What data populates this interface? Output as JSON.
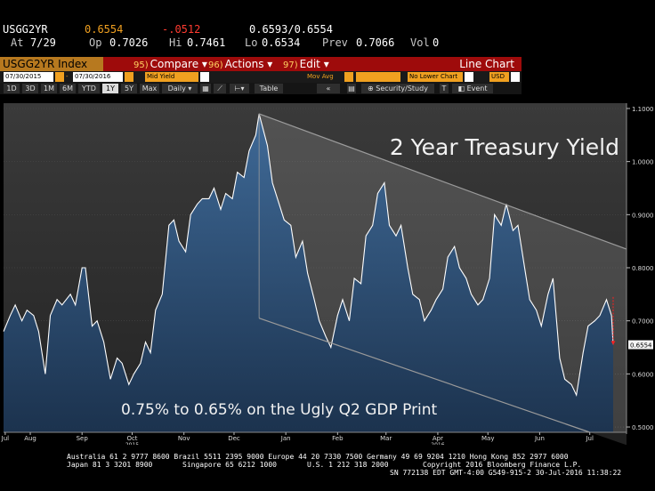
{
  "quote": {
    "ticker": "USGG2YR",
    "last": "0.6554",
    "change": "-.0512",
    "bid_ask": "0.6593/0.6554",
    "at_label": "At",
    "at": "7/29",
    "op_label": "Op",
    "open": "0.7026",
    "hi_label": "Hi",
    "high": "0.7461",
    "lo_label": "Lo",
    "low": "0.6534",
    "prev_label": "Prev",
    "prev": "0.7066",
    "vol_label": "Vol",
    "vol": "0"
  },
  "toolbar": {
    "ticker_index": "USGG2YR Index",
    "compare_num": "95)",
    "compare": "Compare",
    "actions_num": "96)",
    "actions": "Actions",
    "edit_num": "97)",
    "edit": "Edit",
    "chart_type": "Line Chart"
  },
  "controls": {
    "start_date": "07/30/2015",
    "end_date": "07/30/2016",
    "field": "Mid Yield",
    "mov_avg": "Mov Avg",
    "lower_chart": "No Lower Chart",
    "currency": "USD",
    "security_study": "Security/Study",
    "event": "Event",
    "table": "Table",
    "periods": [
      "1D",
      "3D",
      "1M",
      "6M",
      "YTD",
      "1Y",
      "5Y",
      "Max"
    ],
    "active_period": "1Y",
    "frequency": "Daily"
  },
  "chart_data": {
    "type": "area",
    "title": "2 Year Treasury Yield",
    "annotation": "0.75% to 0.65% on the Ugly Q2 GDP Print",
    "last_value_label": "0.6554",
    "ylim": [
      0.49,
      1.11
    ],
    "y_ticks": [
      "1.1000",
      "1.0000",
      "0.9000",
      "0.8000",
      "0.7000",
      "0.6000",
      "0.5000"
    ],
    "y_tick_values": [
      1.1,
      1.0,
      0.9,
      0.8,
      0.7,
      0.6,
      0.5
    ],
    "x_ticks": [
      {
        "label": "Jul",
        "date": "2015-07-31"
      },
      {
        "label": "Aug",
        "date": "2015-08-15"
      },
      {
        "label": "Sep",
        "date": "2015-09-15"
      },
      {
        "label": "Oct",
        "date": "2015-10-15"
      },
      {
        "label": "Nov",
        "date": "2015-11-15"
      },
      {
        "label": "Dec",
        "date": "2015-12-15"
      },
      {
        "label": "Jan",
        "date": "2016-01-15"
      },
      {
        "label": "Feb",
        "date": "2016-02-15"
      },
      {
        "label": "Mar",
        "date": "2016-03-15"
      },
      {
        "label": "Apr",
        "date": "2016-04-15"
      },
      {
        "label": "May",
        "date": "2016-05-15"
      },
      {
        "label": "Jun",
        "date": "2016-06-15"
      },
      {
        "label": "Jul",
        "date": "2016-07-15"
      }
    ],
    "year_labels": [
      {
        "label": "2015",
        "date": "2015-10-15"
      },
      {
        "label": "2016",
        "date": "2016-04-15"
      }
    ],
    "x_start": "2015-07-30",
    "x_end": "2016-08-06",
    "series": [
      {
        "points": [
          [
            "2015-07-30",
            0.68
          ],
          [
            "2015-08-03",
            0.71
          ],
          [
            "2015-08-06",
            0.73
          ],
          [
            "2015-08-10",
            0.7
          ],
          [
            "2015-08-13",
            0.72
          ],
          [
            "2015-08-17",
            0.71
          ],
          [
            "2015-08-20",
            0.68
          ],
          [
            "2015-08-24",
            0.6
          ],
          [
            "2015-08-27",
            0.71
          ],
          [
            "2015-08-31",
            0.74
          ],
          [
            "2015-09-03",
            0.73
          ],
          [
            "2015-09-08",
            0.75
          ],
          [
            "2015-09-11",
            0.73
          ],
          [
            "2015-09-15",
            0.8
          ],
          [
            "2015-09-17",
            0.8
          ],
          [
            "2015-09-21",
            0.69
          ],
          [
            "2015-09-24",
            0.7
          ],
          [
            "2015-09-28",
            0.66
          ],
          [
            "2015-10-02",
            0.59
          ],
          [
            "2015-10-06",
            0.63
          ],
          [
            "2015-10-09",
            0.62
          ],
          [
            "2015-10-13",
            0.58
          ],
          [
            "2015-10-16",
            0.6
          ],
          [
            "2015-10-20",
            0.62
          ],
          [
            "2015-10-23",
            0.66
          ],
          [
            "2015-10-26",
            0.64
          ],
          [
            "2015-10-29",
            0.72
          ],
          [
            "2015-11-02",
            0.75
          ],
          [
            "2015-11-06",
            0.88
          ],
          [
            "2015-11-09",
            0.89
          ],
          [
            "2015-11-12",
            0.85
          ],
          [
            "2015-11-16",
            0.83
          ],
          [
            "2015-11-19",
            0.9
          ],
          [
            "2015-11-23",
            0.92
          ],
          [
            "2015-11-26",
            0.93
          ],
          [
            "2015-11-30",
            0.93
          ],
          [
            "2015-12-03",
            0.95
          ],
          [
            "2015-12-07",
            0.91
          ],
          [
            "2015-12-10",
            0.94
          ],
          [
            "2015-12-14",
            0.93
          ],
          [
            "2015-12-17",
            0.98
          ],
          [
            "2015-12-21",
            0.97
          ],
          [
            "2015-12-24",
            1.02
          ],
          [
            "2015-12-28",
            1.05
          ],
          [
            "2015-12-30",
            1.09
          ],
          [
            "2016-01-04",
            1.03
          ],
          [
            "2016-01-07",
            0.96
          ],
          [
            "2016-01-11",
            0.92
          ],
          [
            "2016-01-14",
            0.89
          ],
          [
            "2016-01-18",
            0.88
          ],
          [
            "2016-01-21",
            0.82
          ],
          [
            "2016-01-25",
            0.85
          ],
          [
            "2016-01-28",
            0.79
          ],
          [
            "2016-02-01",
            0.74
          ],
          [
            "2016-02-04",
            0.7
          ],
          [
            "2016-02-08",
            0.67
          ],
          [
            "2016-02-11",
            0.65
          ],
          [
            "2016-02-15",
            0.71
          ],
          [
            "2016-02-18",
            0.74
          ],
          [
            "2016-02-22",
            0.7
          ],
          [
            "2016-02-25",
            0.78
          ],
          [
            "2016-02-29",
            0.77
          ],
          [
            "2016-03-03",
            0.86
          ],
          [
            "2016-03-07",
            0.88
          ],
          [
            "2016-03-10",
            0.94
          ],
          [
            "2016-03-14",
            0.96
          ],
          [
            "2016-03-17",
            0.88
          ],
          [
            "2016-03-21",
            0.86
          ],
          [
            "2016-03-24",
            0.88
          ],
          [
            "2016-03-28",
            0.8
          ],
          [
            "2016-03-31",
            0.75
          ],
          [
            "2016-04-04",
            0.74
          ],
          [
            "2016-04-07",
            0.7
          ],
          [
            "2016-04-11",
            0.72
          ],
          [
            "2016-04-14",
            0.74
          ],
          [
            "2016-04-18",
            0.76
          ],
          [
            "2016-04-21",
            0.82
          ],
          [
            "2016-04-25",
            0.84
          ],
          [
            "2016-04-28",
            0.8
          ],
          [
            "2016-05-02",
            0.78
          ],
          [
            "2016-05-05",
            0.75
          ],
          [
            "2016-05-09",
            0.73
          ],
          [
            "2016-05-12",
            0.74
          ],
          [
            "2016-05-16",
            0.78
          ],
          [
            "2016-05-19",
            0.9
          ],
          [
            "2016-05-23",
            0.88
          ],
          [
            "2016-05-26",
            0.92
          ],
          [
            "2016-05-30",
            0.87
          ],
          [
            "2016-06-02",
            0.88
          ],
          [
            "2016-06-06",
            0.8
          ],
          [
            "2016-06-09",
            0.74
          ],
          [
            "2016-06-13",
            0.72
          ],
          [
            "2016-06-16",
            0.69
          ],
          [
            "2016-06-20",
            0.75
          ],
          [
            "2016-06-23",
            0.78
          ],
          [
            "2016-06-27",
            0.63
          ],
          [
            "2016-06-30",
            0.59
          ],
          [
            "2016-07-04",
            0.58
          ],
          [
            "2016-07-07",
            0.56
          ],
          [
            "2016-07-11",
            0.64
          ],
          [
            "2016-07-14",
            0.69
          ],
          [
            "2016-07-18",
            0.7
          ],
          [
            "2016-07-21",
            0.71
          ],
          [
            "2016-07-25",
            0.74
          ],
          [
            "2016-07-28",
            0.71
          ],
          [
            "2016-07-29",
            0.655
          ]
        ]
      }
    ],
    "channel": {
      "upper": [
        [
          "2015-12-30",
          1.09
        ],
        [
          "2016-08-06",
          0.835
        ]
      ],
      "lower": [
        [
          "2015-12-30",
          0.705
        ],
        [
          "2016-07-15",
          0.49
        ]
      ]
    },
    "colors": {
      "line": "#ffffff",
      "area": "#2f5b8a",
      "channel": "#9a9a9a",
      "value_marker": "#ff2020"
    }
  },
  "footer": {
    "line1": "Australia 61 2 9777 8600 Brazil 5511 2395 9000 Europe 44 20 7330 7500 Germany 49 69 9204 1210 Hong Kong 852 2977 6000",
    "line2_left": "Japan 81 3 3201 8900",
    "line2_mid1": "Singapore 65 6212 1000",
    "line2_mid2": "U.S. 1 212 318 2000",
    "line2_right": "Copyright 2016 Bloomberg Finance L.P.",
    "line3": "SN 772138 EDT  GMT-4:00 G549-915-2 30-Jul-2016 11:38:22"
  }
}
